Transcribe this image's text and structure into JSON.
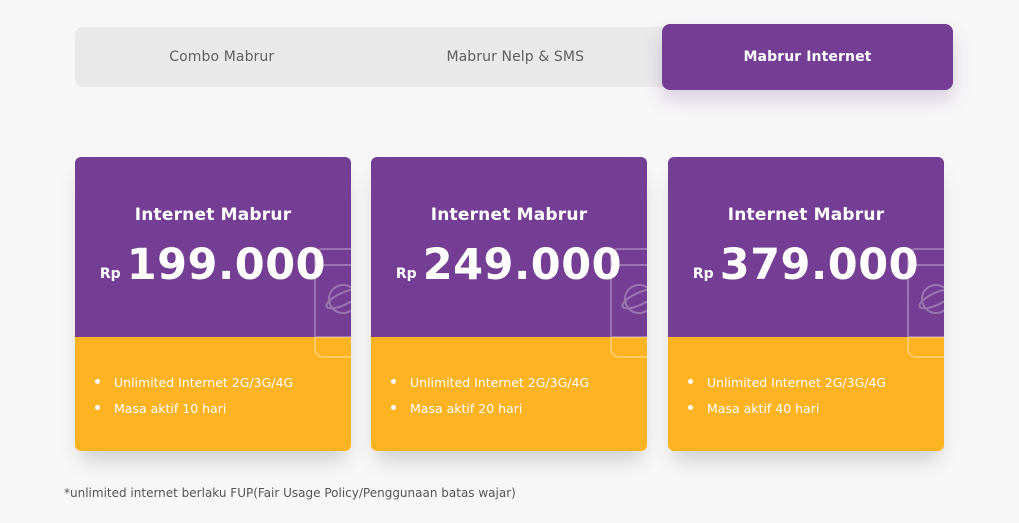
{
  "tabs": [
    {
      "label": "Combo Mabrur",
      "active": false
    },
    {
      "label": "Mabrur Nelp & SMS",
      "active": false
    },
    {
      "label": "Mabrur Internet",
      "active": true
    }
  ],
  "cards": [
    {
      "title": "Internet Mabrur",
      "currency": "Rp",
      "amount": "199.000",
      "features": [
        "Unlimited Internet 2G/3G/4G",
        "Masa aktif 10 hari"
      ],
      "icon": "phone-globe-icon"
    },
    {
      "title": "Internet Mabrur",
      "currency": "Rp",
      "amount": "249.000",
      "features": [
        "Unlimited Internet 2G/3G/4G",
        "Masa aktif 20 hari"
      ],
      "icon": "phone-globe-icon"
    },
    {
      "title": "Internet Mabrur",
      "currency": "Rp",
      "amount": "379.000",
      "features": [
        "Unlimited Internet 2G/3G/4G",
        "Masa aktif 40 hari"
      ],
      "icon": "phone-globe-icon"
    }
  ],
  "footnote": "*unlimited internet berlaku FUP(Fair Usage Policy/Penggunaan batas wajar)",
  "colors": {
    "accent_purple": "#743e94",
    "accent_yellow": "#fdb322",
    "tab_bg": "#e9e9e9",
    "page_bg": "#f7f7f7"
  }
}
